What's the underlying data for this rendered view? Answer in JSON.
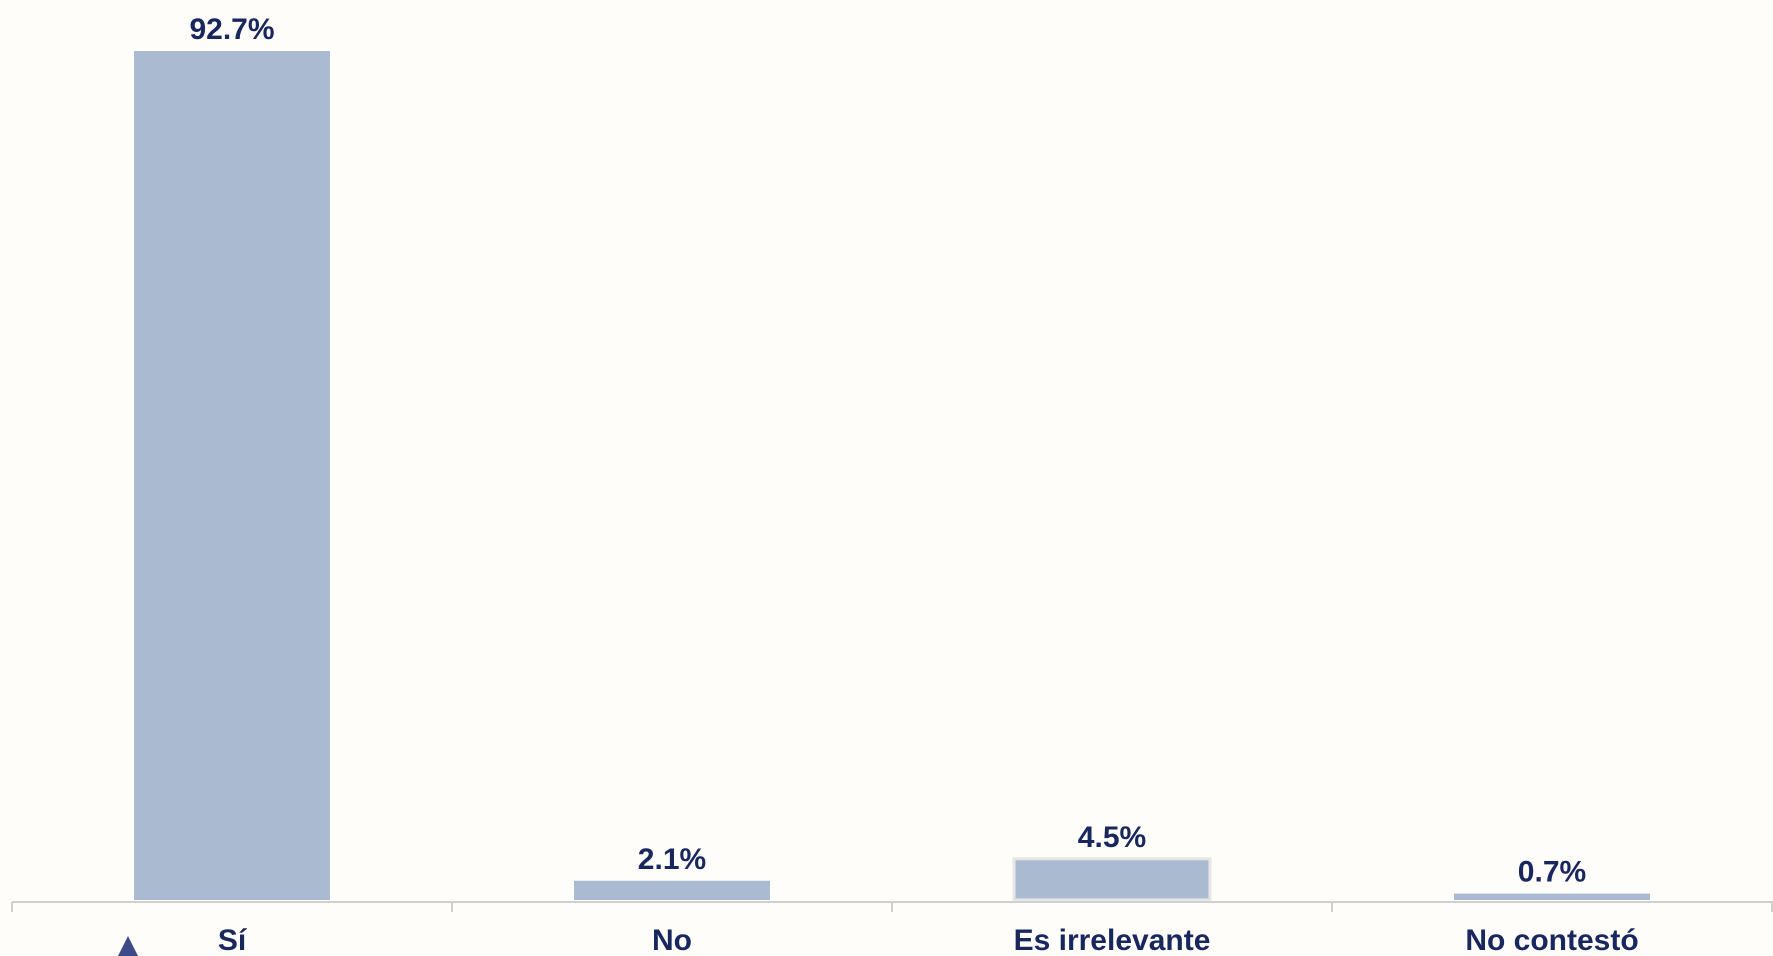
{
  "chart_data": {
    "type": "bar",
    "categories": [
      "Sí",
      "No",
      "Es irrelevante",
      "No contestó"
    ],
    "values": [
      92.7,
      2.1,
      4.5,
      0.7
    ],
    "value_labels": [
      "92.7%",
      "2.1%",
      "4.5%",
      "0.7%"
    ],
    "ylim": [
      0,
      92.7
    ],
    "grid": false,
    "legend": "none",
    "colors": {
      "bar": "#aabbd1",
      "label": "#18275e",
      "axis": "#cfcfcf",
      "background": "#fffdf9"
    }
  }
}
